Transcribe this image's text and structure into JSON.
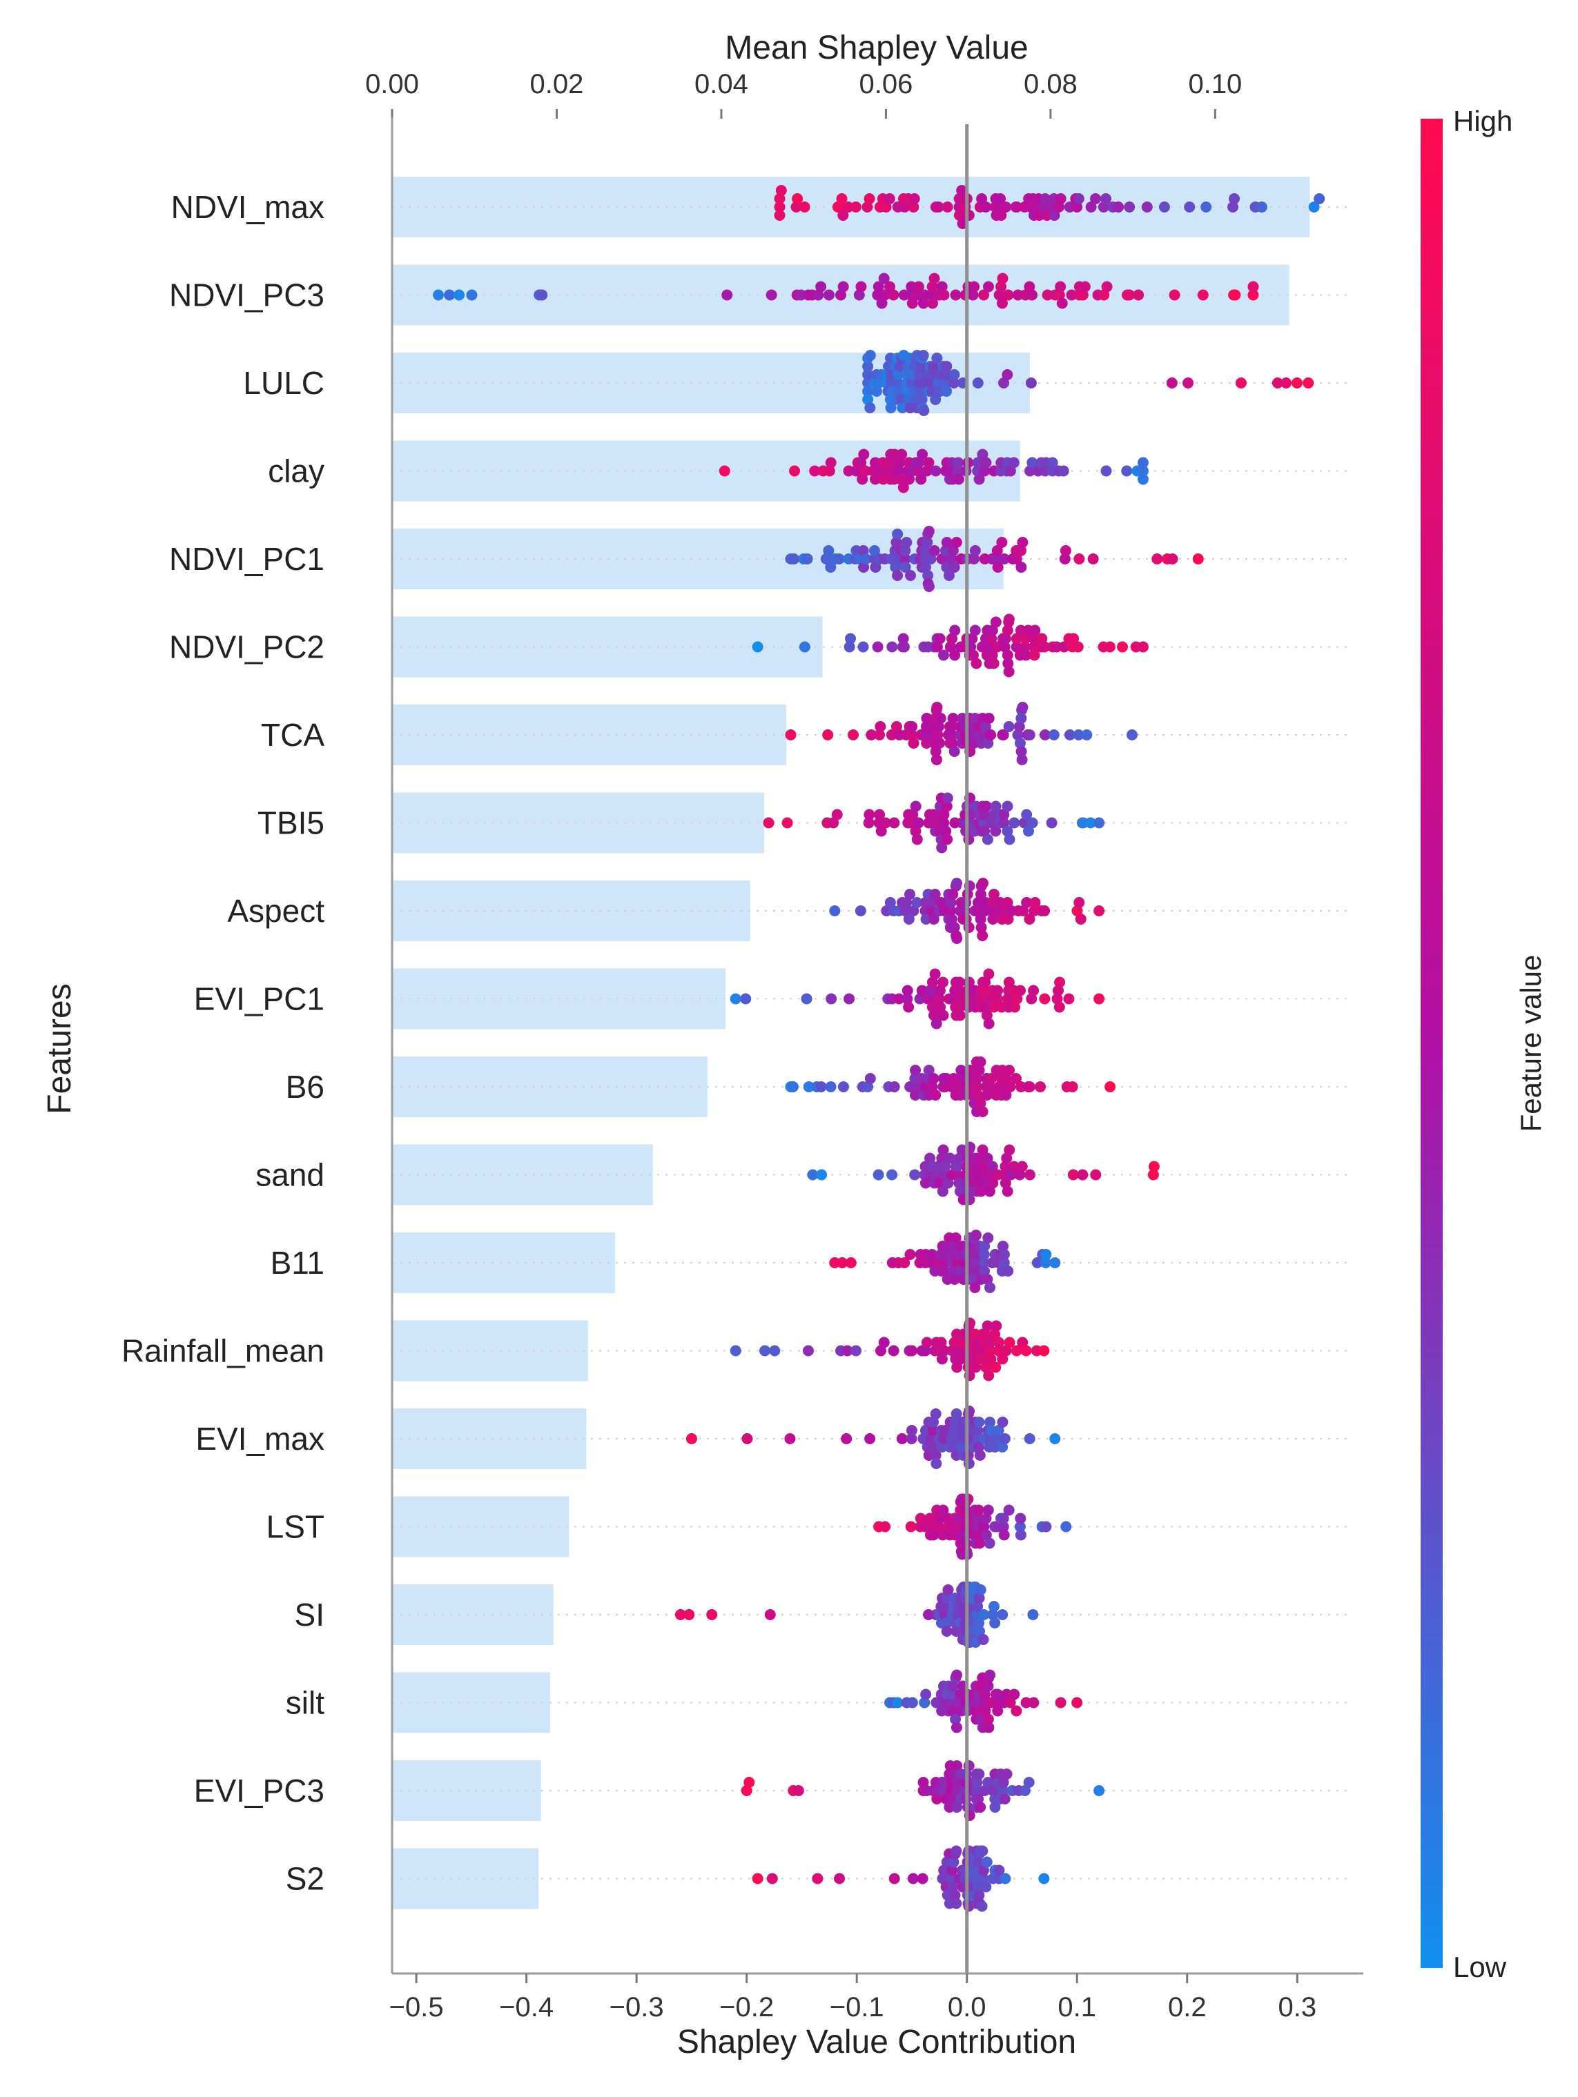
{
  "chart_data": {
    "type": "bar",
    "subtype": "shap-summary-bar-with-beeswarm",
    "title": "",
    "top_axis": {
      "label": "Mean Shapley Value",
      "range": [
        0.0,
        0.118
      ],
      "ticks": [
        0.0,
        0.02,
        0.04,
        0.06,
        0.08,
        0.1
      ],
      "tick_labels": [
        "0.00",
        "0.02",
        "0.04",
        "0.06",
        "0.08",
        "0.10"
      ]
    },
    "bottom_axis": {
      "label": "Shapley Value Contribution",
      "range": [
        -0.522,
        0.36
      ],
      "ticks": [
        -0.5,
        -0.4,
        -0.3,
        -0.2,
        -0.1,
        0.0,
        0.1,
        0.2,
        0.3
      ],
      "tick_labels": [
        "−0.5",
        "−0.4",
        "−0.3",
        "−0.2",
        "−0.1",
        "0.0",
        "0.1",
        "0.2",
        "0.3"
      ]
    },
    "ylabel": "Features",
    "colorbar": {
      "label": "Feature value",
      "high_label": "High",
      "low_label": "Low",
      "high_color": "#ff0a50",
      "mid_color": "#b20fa4",
      "low_color": "#0f8ff0"
    },
    "bar_color": "#cfe6fa",
    "zero_line_color": "#8f8f8f",
    "grid": false,
    "features": [
      "NDVI_max",
      "NDVI_PC3",
      "LULC",
      "clay",
      "NDVI_PC1",
      "NDVI_PC2",
      "TCA",
      "TBI5",
      "Aspect",
      "EVI_PC1",
      "B6",
      "sand",
      "B11",
      "Rainfall_mean",
      "EVI_max",
      "LST",
      "SI",
      "silt",
      "EVI_PC3",
      "S2"
    ],
    "mean_shap": [
      0.1115,
      0.109,
      0.0775,
      0.0763,
      0.0743,
      0.0523,
      0.0479,
      0.0452,
      0.0435,
      0.0405,
      0.0383,
      0.0317,
      0.0271,
      0.0238,
      0.0236,
      0.0215,
      0.0196,
      0.0192,
      0.0181,
      0.0178
    ],
    "beeswarm": [
      {
        "min": -0.17,
        "max": 0.32,
        "center": -0.02,
        "spread": 0.09,
        "trend": -1,
        "n": 85
      },
      {
        "min": -0.48,
        "max": 0.26,
        "center": 0.02,
        "spread": 0.1,
        "trend": 1,
        "n": 80
      },
      {
        "min": -0.09,
        "max": 0.31,
        "center": -0.055,
        "spread": 0.018,
        "trend": 1,
        "n": 90
      },
      {
        "min": -0.22,
        "max": 0.16,
        "center": -0.01,
        "spread": 0.06,
        "trend": -1,
        "n": 85
      },
      {
        "min": -0.16,
        "max": 0.21,
        "center": -0.04,
        "spread": 0.05,
        "trend": 1,
        "n": 85
      },
      {
        "min": -0.19,
        "max": 0.16,
        "center": 0.03,
        "spread": 0.04,
        "trend": 1,
        "n": 80
      },
      {
        "min": -0.16,
        "max": 0.15,
        "center": 0.0,
        "spread": 0.04,
        "trend": -1,
        "n": 80
      },
      {
        "min": -0.18,
        "max": 0.12,
        "center": -0.01,
        "spread": 0.035,
        "trend": -1,
        "n": 80
      },
      {
        "min": -0.12,
        "max": 0.12,
        "center": 0.0,
        "spread": 0.035,
        "trend": 1,
        "n": 80
      },
      {
        "min": -0.21,
        "max": 0.12,
        "center": 0.0,
        "spread": 0.035,
        "trend": 1,
        "n": 80
      },
      {
        "min": -0.16,
        "max": 0.13,
        "center": 0.0,
        "spread": 0.03,
        "trend": 1,
        "n": 80
      },
      {
        "min": -0.14,
        "max": 0.17,
        "center": 0.0,
        "spread": 0.025,
        "trend": 1,
        "n": 75
      },
      {
        "min": -0.12,
        "max": 0.08,
        "center": 0.0,
        "spread": 0.025,
        "trend": -1,
        "n": 75
      },
      {
        "min": -0.21,
        "max": 0.07,
        "center": 0.0,
        "spread": 0.022,
        "trend": 1,
        "n": 70
      },
      {
        "min": -0.25,
        "max": 0.08,
        "center": -0.01,
        "spread": 0.02,
        "trend": -1,
        "n": 70
      },
      {
        "min": -0.08,
        "max": 0.09,
        "center": 0.0,
        "spread": 0.022,
        "trend": -1,
        "n": 70
      },
      {
        "min": -0.26,
        "max": 0.06,
        "center": 0.0,
        "spread": 0.015,
        "trend": -1,
        "n": 65
      },
      {
        "min": -0.07,
        "max": 0.1,
        "center": 0.0,
        "spread": 0.02,
        "trend": 1,
        "n": 65
      },
      {
        "min": -0.2,
        "max": 0.12,
        "center": 0.0,
        "spread": 0.02,
        "trend": -1,
        "n": 65
      },
      {
        "min": -0.19,
        "max": 0.07,
        "center": 0.0,
        "spread": 0.015,
        "trend": -1,
        "n": 65
      }
    ]
  }
}
